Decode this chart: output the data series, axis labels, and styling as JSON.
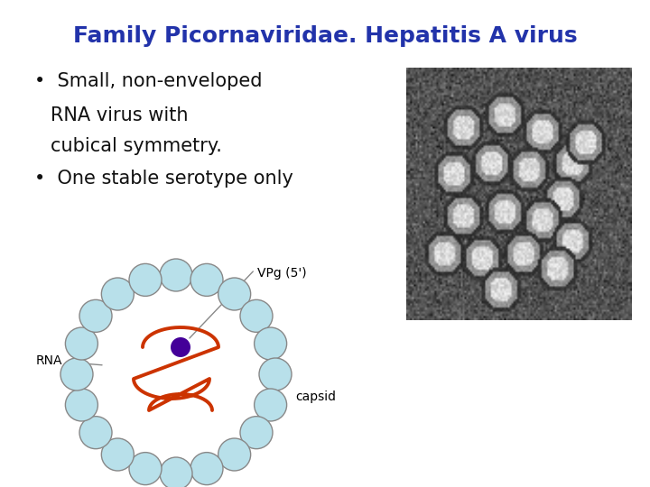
{
  "title": "Family Picornaviridae. Hepatitis A virus",
  "title_color": "#2233aa",
  "title_fontsize": 18,
  "bg_color": "#ffffff",
  "bullet1_line1": "•  Small, non-enveloped",
  "bullet1_line2": "RNA virus with",
  "bullet1_line3": "cubical symmetry.",
  "bullet2": "•  One stable serotype only",
  "text_fontsize": 15,
  "text_color": "#111111",
  "capsid_fill": "#b8e0ea",
  "capsid_edge": "#888888",
  "rna_color": "#cc3300",
  "vpg_color": "#440099",
  "label_fontsize": 10,
  "num_capsomeres": 20,
  "em_seed": 7
}
